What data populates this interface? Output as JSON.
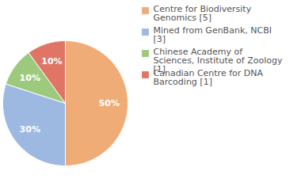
{
  "chart_data": {
    "type": "pie",
    "categories": [
      "Centre for Biodiversity Genomics [5]",
      "Mined from GenBank, NCBI [3]",
      "Chinese Academy of Sciences, Institute of Zoology [1]",
      "Canadian Centre for DNA Barcoding [1]"
    ],
    "values": [
      50,
      30,
      10,
      10
    ],
    "value_labels": [
      "50%",
      "30%",
      "10%",
      "10%"
    ],
    "colors": [
      "#efac76",
      "#9db9e1",
      "#9dc97d",
      "#e07565"
    ],
    "data_labels": true,
    "legend": "right"
  }
}
